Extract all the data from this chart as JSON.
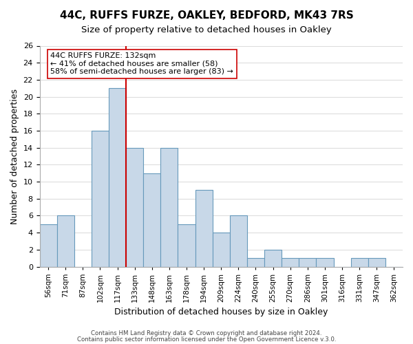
{
  "title": "44C, RUFFS FURZE, OAKLEY, BEDFORD, MK43 7RS",
  "subtitle": "Size of property relative to detached houses in Oakley",
  "xlabel": "Distribution of detached houses by size in Oakley",
  "ylabel": "Number of detached properties",
  "bins": [
    "56sqm",
    "71sqm",
    "87sqm",
    "102sqm",
    "117sqm",
    "133sqm",
    "148sqm",
    "163sqm",
    "178sqm",
    "194sqm",
    "209sqm",
    "224sqm",
    "240sqm",
    "255sqm",
    "270sqm",
    "286sqm",
    "301sqm",
    "316sqm",
    "331sqm",
    "347sqm",
    "362sqm"
  ],
  "counts": [
    5,
    6,
    0,
    16,
    21,
    14,
    11,
    14,
    5,
    9,
    4,
    6,
    1,
    2,
    1,
    1,
    1,
    0,
    1,
    1,
    0
  ],
  "bar_color": "#c8d8e8",
  "bar_edge_color": "#6699bb",
  "marker_x_bin": "133sqm",
  "marker_line_color": "#cc0000",
  "ylim": [
    0,
    26
  ],
  "yticks": [
    0,
    2,
    4,
    6,
    8,
    10,
    12,
    14,
    16,
    18,
    20,
    22,
    24,
    26
  ],
  "annotation_title": "44C RUFFS FURZE: 132sqm",
  "annotation_line1": "← 41% of detached houses are smaller (58)",
  "annotation_line2": "58% of semi-detached houses are larger (83) →",
  "annotation_box_color": "#ffffff",
  "annotation_box_edge": "#cc0000",
  "footer1": "Contains HM Land Registry data © Crown copyright and database right 2024.",
  "footer2": "Contains public sector information licensed under the Open Government Licence v.3.0.",
  "background_color": "#ffffff",
  "grid_color": "#dddddd"
}
